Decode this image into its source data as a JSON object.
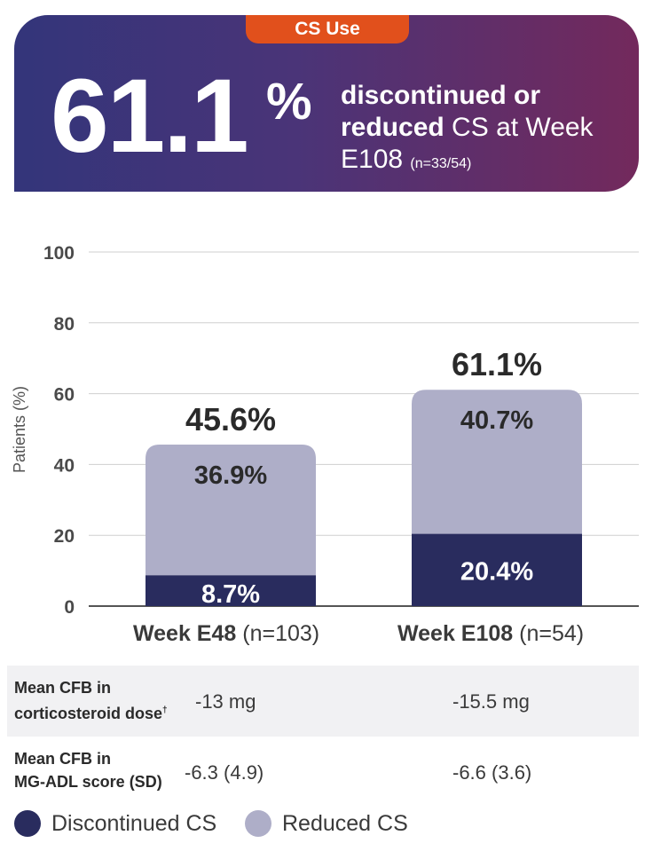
{
  "banner": {
    "tag": "CS Use",
    "big_number": "61.1",
    "big_percent": "%",
    "headline_bold_1": "discontinued or",
    "headline_bold_2": "reduced",
    "headline_text_1": " CS at Week",
    "headline_text_2": "E108 ",
    "headline_n": "(n=33/54)"
  },
  "colors": {
    "discontinued": "#292c5e",
    "reduced": "#aeaec8",
    "tag": "#e1501c"
  },
  "chart_data": {
    "type": "bar",
    "stacked": true,
    "ylabel": "Patients (%)",
    "ylim": [
      0,
      100
    ],
    "yticks": [
      "0",
      "20",
      "40",
      "60",
      "80",
      "100"
    ],
    "grid": true,
    "categories": [
      "Week E48",
      "Week E108"
    ],
    "category_n": [
      "(n=103)",
      "(n=54)"
    ],
    "series": [
      {
        "name": "Discontinued CS",
        "values": [
          8.7,
          20.4
        ],
        "labels": [
          "8.7%",
          "20.4%"
        ]
      },
      {
        "name": "Reduced CS",
        "values": [
          36.9,
          40.7
        ],
        "labels": [
          "36.9%",
          "40.7%"
        ]
      }
    ],
    "totals": [
      45.6,
      61.1
    ],
    "total_labels": [
      "45.6%",
      "61.1%"
    ]
  },
  "table": {
    "rows": [
      {
        "label_1": "Mean CFB in",
        "label_2": "corticosteroid dose",
        "label_sup": "†",
        "values": [
          "-13 mg",
          "-15.5 mg"
        ]
      },
      {
        "label_1": "Mean CFB in",
        "label_2": "MG-ADL score (SD)",
        "label_sup": "",
        "values": [
          "-6.3 (4.9)",
          "-6.6 (3.6)"
        ]
      }
    ]
  },
  "legend": [
    {
      "label": "Discontinued CS"
    },
    {
      "label": "Reduced CS"
    }
  ]
}
